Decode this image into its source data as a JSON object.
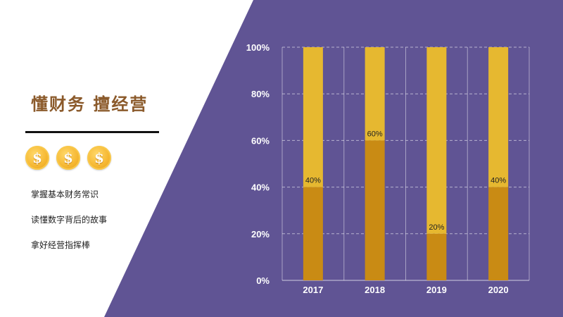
{
  "page": {
    "title": "懂财务  擅经营",
    "bullets": [
      "掌握基本财务常识",
      "读懂数字背后的故事",
      "拿好经营指挥棒"
    ],
    "coin_symbol": "$",
    "colors": {
      "background_right": "#605494",
      "bar_base": "#c98b14",
      "bar_top": "#e6b830",
      "title": "#8b5a2b",
      "coin": "#f6b833"
    }
  },
  "chart_data": {
    "type": "bar",
    "stacked": true,
    "categories": [
      "2017",
      "2018",
      "2019",
      "2020"
    ],
    "series": [
      {
        "values": [
          40,
          60,
          20,
          40
        ]
      },
      {
        "values": [
          60,
          40,
          80,
          60
        ]
      }
    ],
    "data_labels": [
      "40%",
      "60%",
      "20%",
      "40%"
    ],
    "y_ticks": [
      "0%",
      "20%",
      "40%",
      "60%",
      "80%",
      "100%"
    ],
    "ylim": [
      0,
      100
    ],
    "grid": true,
    "title": "",
    "xlabel": "",
    "ylabel": ""
  }
}
